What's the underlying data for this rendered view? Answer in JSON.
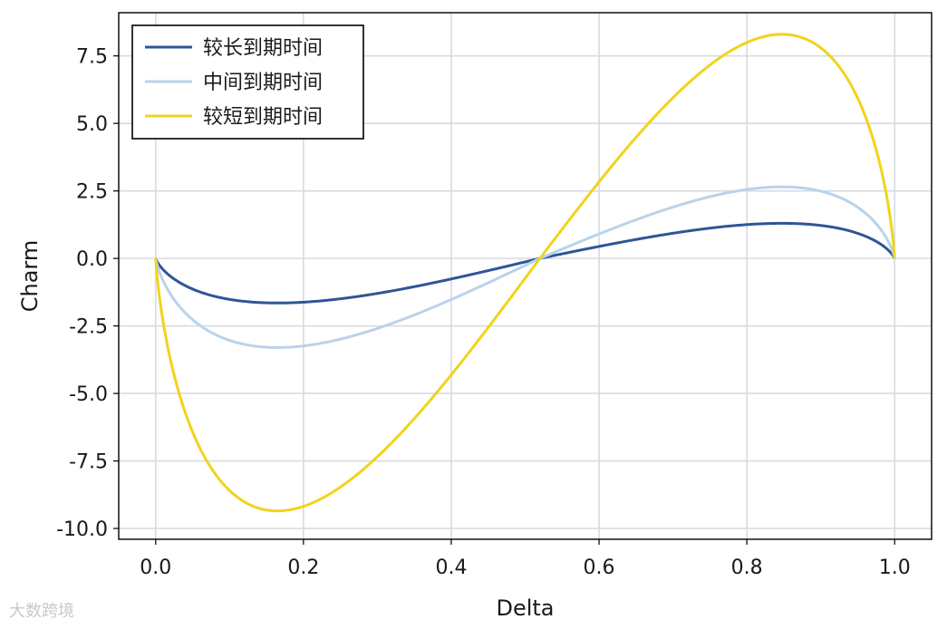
{
  "chart_data": {
    "type": "line",
    "xlabel": "Delta",
    "ylabel": "Charm",
    "xlim": [
      -0.05,
      1.05
    ],
    "ylim": [
      -10.4,
      9.1
    ],
    "xticks": [
      0.0,
      0.2,
      0.4,
      0.6,
      0.8,
      1.0
    ],
    "xtick_labels": [
      "0.0",
      "0.2",
      "0.4",
      "0.6",
      "0.8",
      "1.0"
    ],
    "yticks": [
      7.5,
      5.0,
      2.5,
      0.0,
      -2.5,
      -5.0,
      -7.5,
      -10.0
    ],
    "ytick_labels": [
      "7.5",
      "5.0",
      "2.5",
      "0.0",
      "-2.5",
      "-5.0",
      "-7.5",
      "-10.0"
    ],
    "grid": true,
    "legend_position": "top-left",
    "series": [
      {
        "name": "较长到期时间",
        "color": "#2f5597",
        "min": -1.65,
        "max": 1.3
      },
      {
        "name": "中间到期时间",
        "color": "#b9d3ea",
        "min": -3.3,
        "max": 2.65
      },
      {
        "name": "较短到期时间",
        "color": "#f2d31b",
        "min": -9.35,
        "max": 8.3
      }
    ]
  },
  "watermark": "大数跨境"
}
